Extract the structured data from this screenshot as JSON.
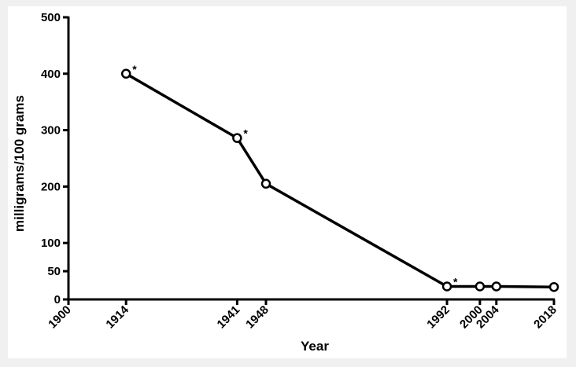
{
  "chart_data": {
    "type": "line",
    "xlabel": "Year",
    "ylabel": "milligrams/100 grams",
    "xlim": [
      1900,
      2018
    ],
    "ylim": [
      0,
      500
    ],
    "x_ticks": [
      1900,
      1914,
      1941,
      1948,
      1992,
      2000,
      2004,
      2018
    ],
    "y_ticks": [
      0,
      50,
      100,
      200,
      300,
      400,
      500
    ],
    "grid": false,
    "series": [
      {
        "x": [
          1914,
          1941,
          1948,
          1992,
          2000,
          2004,
          2018
        ],
        "y": [
          400,
          286,
          205,
          23,
          23,
          23,
          22
        ],
        "annotations": [
          "*",
          "*",
          "",
          "*",
          "",
          "",
          ""
        ]
      }
    ],
    "colors": {
      "line": "#000000",
      "marker_fill": "#ffffff",
      "background": "#ffffff",
      "page": "#f0f0f0"
    }
  }
}
